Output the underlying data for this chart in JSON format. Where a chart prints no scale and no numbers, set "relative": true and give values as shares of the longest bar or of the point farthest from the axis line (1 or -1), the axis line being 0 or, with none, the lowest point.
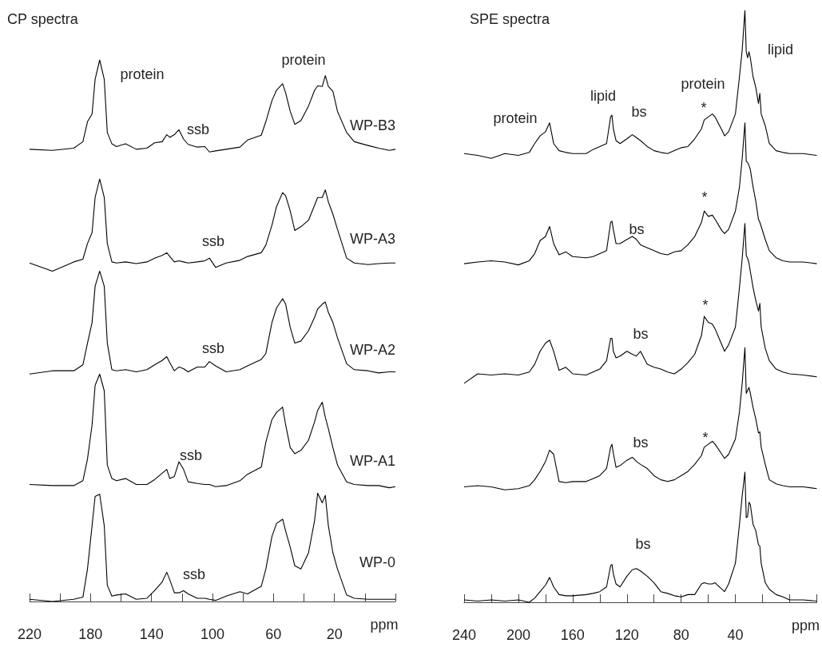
{
  "chart_data": [
    {
      "type": "line",
      "title": "CP spectra",
      "relative": true,
      "xlabel": "ppm",
      "xlim": [
        220,
        -20
      ],
      "xticks": [
        220,
        {
          "value": 200,
          "label": null
        },
        180,
        {
          "value": 160,
          "label": null
        },
        140,
        {
          "value": 120,
          "label": null
        },
        100,
        {
          "value": 80,
          "label": null
        },
        60,
        {
          "value": 40,
          "label": null
        },
        20,
        {
          "value": 0,
          "label": null
        },
        {
          "value": -20,
          "label": null
        }
      ],
      "x": [
        220,
        205,
        191,
        185,
        182,
        179,
        177,
        174,
        171,
        169,
        166,
        163,
        157,
        150,
        143,
        138,
        133,
        130,
        128,
        125,
        122,
        119,
        116,
        110,
        105,
        102,
        98,
        91,
        82,
        77,
        68,
        65,
        61,
        58,
        54,
        52,
        49,
        46,
        42,
        37,
        33,
        31,
        28,
        26,
        24,
        21,
        18,
        12,
        7,
        -2,
        -9,
        -16,
        -20
      ],
      "series": [
        {
          "name": "WP-B3",
          "color": "#000000",
          "values": [
            0.835,
            0.833,
            0.837,
            0.849,
            0.886,
            0.9,
            0.964,
            1,
            0.964,
            0.866,
            0.845,
            0.84,
            0.845,
            0.835,
            0.837,
            0.847,
            0.849,
            0.862,
            0.857,
            0.862,
            0.871,
            0.854,
            0.844,
            0.839,
            0.84,
            0.83,
            0.832,
            0.835,
            0.839,
            0.852,
            0.861,
            0.886,
            0.925,
            0.944,
            0.956,
            0.939,
            0.905,
            0.881,
            0.888,
            0.915,
            0.944,
            0.952,
            0.951,
            0.971,
            0.951,
            0.942,
            0.905,
            0.866,
            0.849,
            0.842,
            0.837,
            0.833,
            0.835
          ]
        },
        {
          "name": "WP-A3",
          "color": "#000000",
          "values": [
            0.625,
            0.61,
            0.627,
            0.632,
            0.661,
            0.681,
            0.746,
            0.78,
            0.746,
            0.661,
            0.627,
            0.625,
            0.627,
            0.624,
            0.627,
            0.634,
            0.639,
            0.644,
            0.637,
            0.627,
            0.629,
            0.627,
            0.625,
            0.627,
            0.629,
            0.634,
            0.617,
            0.625,
            0.63,
            0.637,
            0.644,
            0.658,
            0.695,
            0.729,
            0.755,
            0.749,
            0.721,
            0.685,
            0.692,
            0.704,
            0.732,
            0.746,
            0.746,
            0.76,
            0.738,
            0.715,
            0.687,
            0.634,
            0.625,
            0.622,
            0.624,
            0.625,
            0.625
          ]
        },
        {
          "name": "WP-A2",
          "color": "#000000",
          "values": [
            0.42,
            0.426,
            0.426,
            0.437,
            0.477,
            0.515,
            0.582,
            0.61,
            0.582,
            0.477,
            0.428,
            0.426,
            0.428,
            0.424,
            0.428,
            0.437,
            0.445,
            0.452,
            0.441,
            0.426,
            0.433,
            0.43,
            0.424,
            0.433,
            0.433,
            0.443,
            0.435,
            0.424,
            0.428,
            0.435,
            0.447,
            0.458,
            0.515,
            0.542,
            0.559,
            0.549,
            0.506,
            0.477,
            0.481,
            0.5,
            0.525,
            0.54,
            0.549,
            0.553,
            0.534,
            0.515,
            0.487,
            0.439,
            0.428,
            0.426,
            0.422,
            0.424,
            0.424
          ]
        },
        {
          "name": "WP-A1",
          "color": "#000000",
          "values": [
            0.216,
            0.214,
            0.214,
            0.223,
            0.263,
            0.326,
            0.399,
            0.42,
            0.389,
            0.252,
            0.227,
            0.223,
            0.227,
            0.216,
            0.216,
            0.225,
            0.237,
            0.244,
            0.227,
            0.231,
            0.258,
            0.244,
            0.221,
            0.218,
            0.216,
            0.216,
            0.212,
            0.214,
            0.223,
            0.235,
            0.248,
            0.294,
            0.336,
            0.349,
            0.359,
            0.326,
            0.284,
            0.273,
            0.279,
            0.298,
            0.332,
            0.353,
            0.368,
            0.34,
            0.319,
            0.284,
            0.252,
            0.221,
            0.216,
            0.214,
            0.214,
            0.21,
            0.212
          ]
        },
        {
          "name": "WP-0",
          "color": "#000000",
          "values": [
            0.004,
            0,
            0.004,
            0.008,
            0.06,
            0.14,
            0.194,
            0.198,
            0.14,
            0.03,
            0.01,
            0.012,
            0.014,
            0.004,
            0.006,
            0.02,
            0.036,
            0.054,
            0.04,
            0.016,
            0.016,
            0.02,
            0.014,
            0.006,
            0.006,
            0.004,
            0.002,
            0.01,
            0.018,
            0.014,
            0.028,
            0.06,
            0.12,
            0.144,
            0.152,
            0.13,
            0.1,
            0.066,
            0.06,
            0.09,
            0.15,
            0.2,
            0.182,
            0.196,
            0.14,
            0.09,
            0.06,
            0.012,
            0.006,
            0.004,
            0.004,
            0.004,
            0.004
          ]
        }
      ],
      "annotations": [
        "protein",
        "protein",
        "ssb",
        "ssb",
        "ssb",
        "ssb",
        "ssb"
      ]
    },
    {
      "type": "line",
      "title": "SPE spectra",
      "relative": true,
      "xlabel": "ppm",
      "xlim": [
        240,
        -20
      ],
      "xticks": [
        240,
        {
          "value": 220,
          "label": null
        },
        200,
        {
          "value": 180,
          "label": null
        },
        160,
        {
          "value": 140,
          "label": null
        },
        120,
        {
          "value": 100,
          "label": null
        },
        80,
        {
          "value": 60,
          "label": null
        },
        40,
        {
          "value": 20,
          "label": null
        },
        {
          "value": 0,
          "label": null
        },
        {
          "value": -20,
          "label": null
        }
      ],
      "x": [
        240,
        230,
        220,
        210,
        200,
        192,
        188,
        184,
        180,
        177,
        174,
        170,
        165,
        160,
        150,
        145,
        140,
        135,
        132,
        131,
        130,
        128,
        125,
        120,
        116,
        113,
        110,
        105,
        100,
        95,
        90,
        85,
        80,
        75,
        70,
        65,
        63,
        60,
        57,
        55,
        50,
        48,
        45,
        40,
        37,
        35,
        33,
        32,
        31,
        30,
        29,
        27,
        25,
        23,
        22,
        21,
        18,
        15,
        10,
        5,
        0,
        -10,
        -20
      ],
      "series": [
        {
          "color": "#000000",
          "values": [
            0.758,
            0.755,
            0.75,
            0.758,
            0.755,
            0.76,
            0.775,
            0.788,
            0.795,
            0.81,
            0.775,
            0.763,
            0.76,
            0.758,
            0.758,
            0.765,
            0.77,
            0.775,
            0.82,
            0.823,
            0.8,
            0.78,
            0.775,
            0.783,
            0.79,
            0.785,
            0.78,
            0.77,
            0.763,
            0.76,
            0.758,
            0.763,
            0.768,
            0.77,
            0.783,
            0.8,
            0.815,
            0.82,
            0.825,
            0.82,
            0.798,
            0.788,
            0.795,
            0.825,
            0.888,
            0.933,
            1,
            0.93,
            0.92,
            0.93,
            0.92,
            0.888,
            0.87,
            0.843,
            0.86,
            0.825,
            0.805,
            0.775,
            0.763,
            0.76,
            0.758,
            0.758,
            0.755
          ]
        },
        {
          "color": "#000000",
          "values": [
            0.572,
            0.575,
            0.577,
            0.575,
            0.57,
            0.577,
            0.589,
            0.611,
            0.618,
            0.635,
            0.606,
            0.587,
            0.592,
            0.584,
            0.582,
            0.584,
            0.589,
            0.594,
            0.642,
            0.644,
            0.63,
            0.606,
            0.606,
            0.613,
            0.618,
            0.613,
            0.604,
            0.599,
            0.594,
            0.589,
            0.587,
            0.592,
            0.594,
            0.604,
            0.618,
            0.642,
            0.661,
            0.652,
            0.654,
            0.647,
            0.628,
            0.623,
            0.63,
            0.661,
            0.702,
            0.75,
            0.81,
            0.745,
            0.743,
            0.738,
            0.731,
            0.702,
            0.678,
            0.647,
            0.642,
            0.635,
            0.613,
            0.594,
            0.582,
            0.577,
            0.575,
            0.575,
            0.572
          ]
        },
        {
          "color": "#000000",
          "values": [
            0.37,
            0.386,
            0.384,
            0.386,
            0.384,
            0.389,
            0.402,
            0.424,
            0.438,
            0.443,
            0.424,
            0.392,
            0.397,
            0.386,
            0.384,
            0.389,
            0.394,
            0.408,
            0.446,
            0.446,
            0.424,
            0.413,
            0.416,
            0.424,
            0.419,
            0.416,
            0.424,
            0.402,
            0.397,
            0.394,
            0.389,
            0.386,
            0.394,
            0.405,
            0.419,
            0.451,
            0.483,
            0.473,
            0.47,
            0.462,
            0.435,
            0.424,
            0.435,
            0.465,
            0.532,
            0.581,
            0.64,
            0.586,
            0.581,
            0.573,
            0.559,
            0.532,
            0.51,
            0.492,
            0.505,
            0.465,
            0.429,
            0.408,
            0.394,
            0.389,
            0.386,
            0.384,
            0.381
          ]
        },
        {
          "color": "#000000",
          "values": [
            0.195,
            0.197,
            0.195,
            0.19,
            0.192,
            0.197,
            0.207,
            0.221,
            0.238,
            0.257,
            0.25,
            0.204,
            0.202,
            0.204,
            0.204,
            0.209,
            0.214,
            0.226,
            0.262,
            0.267,
            0.252,
            0.228,
            0.231,
            0.24,
            0.245,
            0.238,
            0.233,
            0.226,
            0.214,
            0.207,
            0.204,
            0.207,
            0.214,
            0.221,
            0.233,
            0.248,
            0.262,
            0.267,
            0.272,
            0.267,
            0.25,
            0.243,
            0.25,
            0.276,
            0.322,
            0.37,
            0.43,
            0.353,
            0.358,
            0.363,
            0.353,
            0.329,
            0.31,
            0.286,
            0.288,
            0.262,
            0.233,
            0.207,
            0.2,
            0.197,
            0.195,
            0.195,
            0.192
          ]
        },
        {
          "color": "#000000",
          "values": [
            0.004,
            0.002,
            0.004,
            0.002,
            0.004,
            0,
            0.007,
            0.018,
            0.029,
            0.042,
            0.026,
            0.013,
            0.011,
            0.011,
            0.013,
            0.015,
            0.018,
            0.026,
            0.062,
            0.064,
            0.048,
            0.031,
            0.026,
            0.044,
            0.055,
            0.057,
            0.053,
            0.044,
            0.033,
            0.018,
            0.015,
            0.011,
            0.009,
            0.013,
            0.013,
            0.031,
            0.033,
            0.031,
            0.031,
            0.033,
            0.022,
            0.018,
            0.031,
            0.066,
            0.132,
            0.18,
            0.22,
            0.143,
            0.145,
            0.169,
            0.165,
            0.132,
            0.121,
            0.097,
            0.095,
            0.066,
            0.033,
            0.022,
            0.013,
            0.009,
            0.004,
            0.004,
            0.002
          ]
        }
      ],
      "annotations": [
        "protein",
        "lipid",
        "bs",
        "protein",
        "*",
        "lipid",
        "*",
        "bs",
        "*",
        "bs",
        "*",
        "bs",
        "bs"
      ]
    }
  ]
}
